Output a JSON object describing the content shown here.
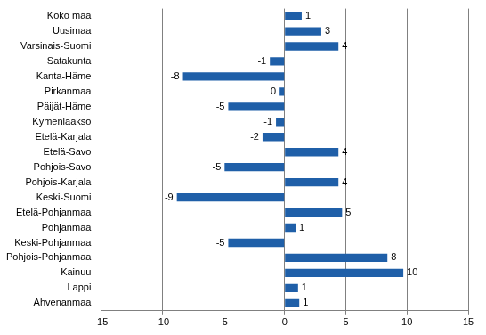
{
  "chart_data": {
    "type": "bar",
    "orientation": "horizontal",
    "categories": [
      "Koko maa",
      "Uusimaa",
      "Varsinais-Suomi",
      "Satakunta",
      "Kanta-Häme",
      "Pirkanmaa",
      "Päijät-Häme",
      "Kymenlaakso",
      "Etelä-Karjala",
      "Etelä-Savo",
      "Pohjois-Savo",
      "Pohjois-Karjala",
      "Keski-Suomi",
      "Etelä-Pohjanmaa",
      "Pohjanmaa",
      "Keski-Pohjanmaa",
      "Pohjois-Pohjanmaa",
      "Kainuu",
      "Lappi",
      "Ahvenanmaa"
    ],
    "values": [
      1.4,
      3.0,
      4.4,
      -1.2,
      -8.3,
      -0.4,
      -4.6,
      -0.7,
      -1.8,
      4.4,
      -4.9,
      4.4,
      -8.8,
      4.7,
      0.9,
      -4.6,
      8.4,
      9.7,
      1.1,
      1.2
    ],
    "value_labels": [
      "1",
      "3",
      "4",
      "-1",
      "-8",
      "0",
      "-5",
      "-1",
      "-2",
      "4",
      "-5",
      "4",
      "-9",
      "5",
      "1",
      "-5",
      "8",
      "10",
      "1",
      "1"
    ],
    "color": "#1f5fa8",
    "xlim": [
      -15,
      15
    ],
    "xticks": [
      -15,
      -10,
      -5,
      0,
      5,
      10,
      15
    ],
    "grid": true,
    "data_labels": true
  }
}
